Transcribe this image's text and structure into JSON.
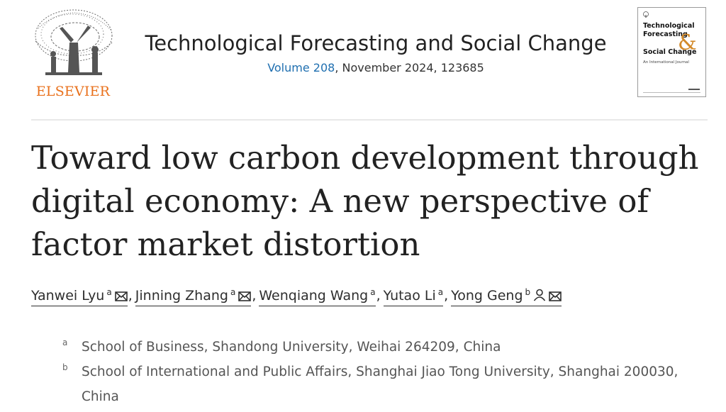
{
  "publisher": {
    "name": "ELSEVIER"
  },
  "journal": {
    "title": "Technological Forecasting and Social Change",
    "volume_link": "Volume 208",
    "issue_info": ", November 2024, 123685",
    "cover": {
      "line1": "Technological",
      "line2": "Forecasting",
      "amp": "&",
      "line3": "Social Change",
      "subtitle": "An International Journal"
    }
  },
  "article": {
    "title_lines": [
      "Toward low carbon development through",
      "digital economy: A new perspective of",
      "factor market distortion"
    ],
    "authors": [
      {
        "name": "Yanwei Lyu",
        "affil": "a",
        "icons": [
          "mail-icon"
        ]
      },
      {
        "name": "Jinning Zhang",
        "affil": "a",
        "icons": [
          "mail-icon"
        ]
      },
      {
        "name": "Wenqiang Wang",
        "affil": "a",
        "icons": []
      },
      {
        "name": "Yutao Li",
        "affil": "a",
        "icons": []
      },
      {
        "name": "Yong Geng",
        "affil": "b",
        "icons": [
          "person-icon",
          "mail-icon"
        ]
      }
    ],
    "separator": ",",
    "affiliations": [
      {
        "label": "a",
        "text": "School of Business, Shandong University, Weihai 264209, China"
      },
      {
        "label": "b",
        "text": "School of International and Public Affairs, Shanghai Jiao Tong University, Shanghai 200030, China"
      }
    ]
  },
  "colors": {
    "publisher_orange": "#e9711c",
    "link_blue": "#1f6fb0",
    "text": "#2e2e2e"
  }
}
